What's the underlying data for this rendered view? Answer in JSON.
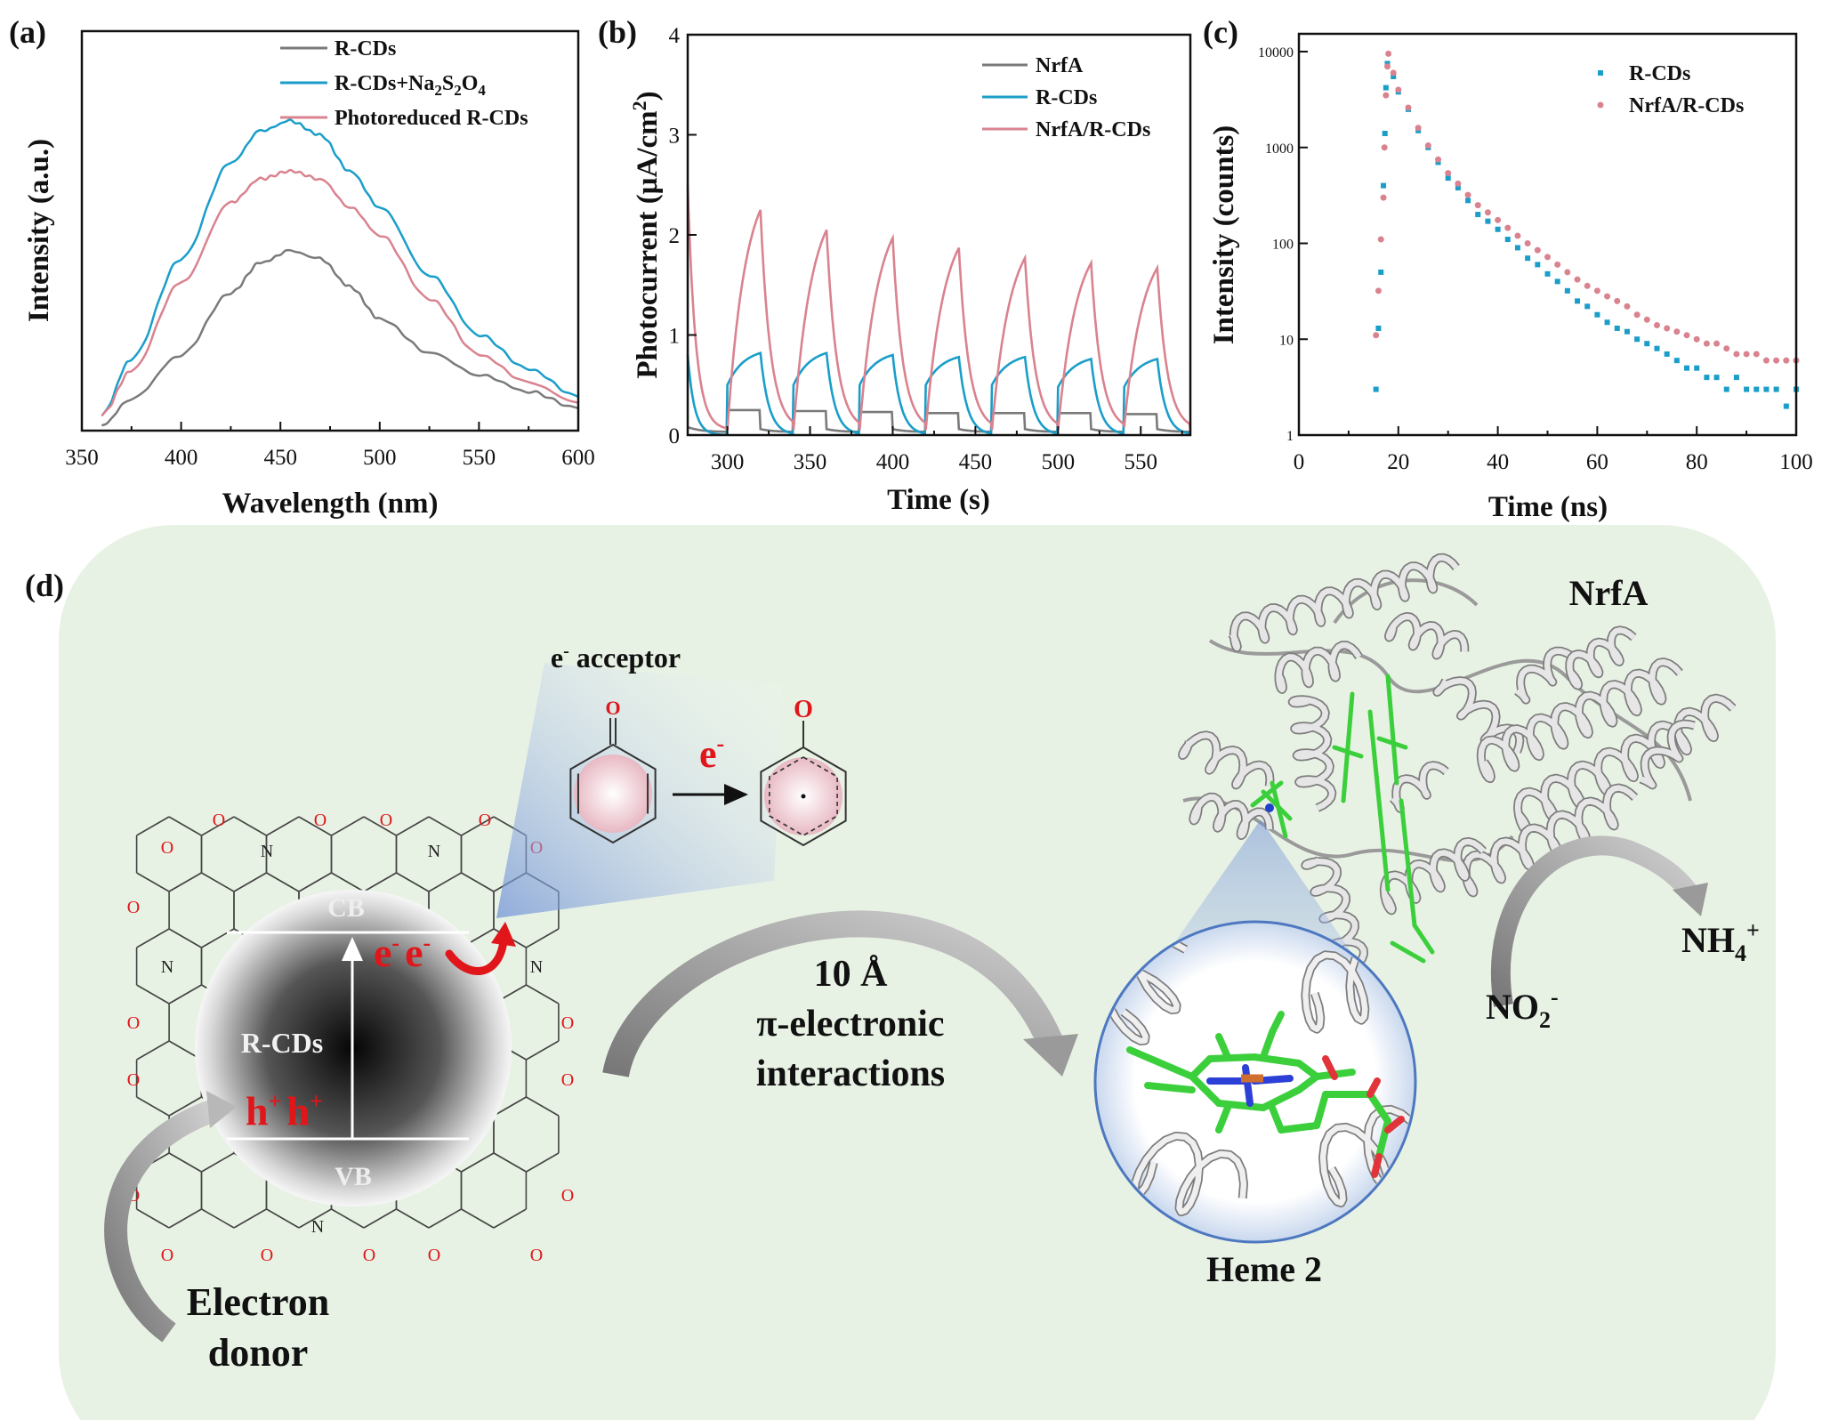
{
  "panel_labels": {
    "a": "(a)",
    "b": "(b)",
    "c": "(c)",
    "d": "(d)"
  },
  "chart_data": [
    {
      "type": "line",
      "panel": "a",
      "xlabel": "Wavelength (nm)",
      "ylabel": "Intensity (a.u.)",
      "xlim": [
        350,
        600
      ],
      "xticks": [
        "350",
        "400",
        "450",
        "500",
        "550",
        "600"
      ],
      "y_tick_labels_shown": false,
      "legend_position": "top-right",
      "x": [
        360,
        375,
        400,
        425,
        440,
        455,
        470,
        485,
        500,
        525,
        550,
        575,
        600
      ],
      "series": [
        {
          "name": "R-CDs",
          "color": "#7a7a7a",
          "values": [
            0.013,
            0.08,
            0.19,
            0.345,
            0.42,
            0.45,
            0.43,
            0.36,
            0.28,
            0.196,
            0.14,
            0.098,
            0.056
          ]
        },
        {
          "name": "R-CDs+Na2S2O4",
          "name_parts": [
            {
              "t": "R-CDs+Na"
            },
            {
              "sub": "2"
            },
            {
              "t": "S"
            },
            {
              "sub": "2"
            },
            {
              "t": "O"
            },
            {
              "sub": "4"
            }
          ],
          "color": "#1a9ec9",
          "values": [
            0.04,
            0.18,
            0.43,
            0.67,
            0.75,
            0.775,
            0.74,
            0.65,
            0.56,
            0.39,
            0.24,
            0.154,
            0.085
          ]
        },
        {
          "name": "Photoreduced R-CDs",
          "color": "#d9838f",
          "values": [
            0.04,
            0.15,
            0.37,
            0.57,
            0.63,
            0.65,
            0.63,
            0.56,
            0.49,
            0.33,
            0.19,
            0.12,
            0.07
          ]
        }
      ]
    },
    {
      "type": "line",
      "panel": "b",
      "xlabel": "Time (s)",
      "ylabel": "Photocurrent (μA/cm",
      "ylabel_sup": "2",
      "ylabel_end": ")",
      "xlim": [
        276,
        580
      ],
      "ylim": [
        0,
        4
      ],
      "xticks": [
        "300",
        "350",
        "400",
        "450",
        "500",
        "550"
      ],
      "yticks": [
        "0",
        "1",
        "2",
        "3",
        "4"
      ],
      "legend_position": "top-right",
      "light_on_times": [
        300,
        340,
        380,
        420,
        460,
        500,
        540
      ],
      "light_on_duration": 20,
      "series": [
        {
          "name": "NrfA",
          "color": "#7a7a7a",
          "initial": 0.08,
          "on_levels": [
            0.25,
            0.24,
            0.23,
            0.22,
            0.22,
            0.22,
            0.21
          ],
          "peaks": [
            0.25,
            0.24,
            0.23,
            0.22,
            0.22,
            0.22,
            0.21
          ]
        },
        {
          "name": "R-CDs",
          "color": "#1a9ec9",
          "initial": 0.8,
          "on_levels": [
            0.5,
            0.5,
            0.5,
            0.5,
            0.5,
            0.48,
            0.48
          ],
          "peaks": [
            0.82,
            0.82,
            0.8,
            0.78,
            0.78,
            0.76,
            0.76
          ]
        },
        {
          "name": "NrfA/R-CDs",
          "color": "#d9838f",
          "initial": 2.5,
          "on_levels": [
            0.05,
            0.05,
            0.05,
            0.05,
            0.05,
            0.05,
            0.08
          ],
          "peaks": [
            2.25,
            2.05,
            1.97,
            1.87,
            1.77,
            1.72,
            1.67
          ]
        }
      ]
    },
    {
      "type": "scatter",
      "panel": "c",
      "xlabel": "Time (ns)",
      "ylabel": "Intensity (counts)",
      "xlim": [
        0,
        100
      ],
      "ylim": [
        1,
        15000
      ],
      "yscale": "log",
      "xticks": [
        "0",
        "20",
        "40",
        "60",
        "80",
        "100"
      ],
      "yticks": [
        "1",
        "10",
        "100",
        "1000",
        "10000"
      ],
      "legend_position": "top-right",
      "series": [
        {
          "name": "R-CDs",
          "color": "#1a9ec9",
          "marker": "square",
          "x": [
            15.5,
            16,
            16.5,
            17,
            17.3,
            17.5,
            17.8,
            19,
            20,
            22,
            24,
            26,
            28,
            30,
            32,
            34,
            36,
            38,
            40,
            42,
            44,
            46,
            48,
            50,
            52,
            54,
            56,
            58,
            60,
            62,
            64,
            66,
            68,
            70,
            72,
            74,
            76,
            78,
            80,
            82,
            84,
            86,
            88,
            90,
            92,
            94,
            96,
            98,
            100
          ],
          "y": [
            3,
            13,
            50,
            400,
            1400,
            4200,
            7500,
            5500,
            3800,
            2500,
            1500,
            1000,
            700,
            480,
            380,
            280,
            200,
            170,
            140,
            110,
            90,
            70,
            60,
            48,
            40,
            32,
            25,
            22,
            18,
            15,
            13,
            12,
            10,
            9,
            8,
            7,
            6,
            5,
            5,
            4,
            4,
            3,
            4,
            3,
            3,
            3,
            3,
            2,
            3
          ]
        },
        {
          "name": "NrfA/R-CDs",
          "color": "#d9838f",
          "marker": "circle",
          "x": [
            15.5,
            16,
            16.5,
            17,
            17.2,
            17.5,
            17.8,
            18,
            19,
            20,
            22,
            24,
            26,
            28,
            30,
            32,
            34,
            36,
            38,
            40,
            42,
            44,
            46,
            48,
            50,
            52,
            54,
            56,
            58,
            60,
            62,
            64,
            66,
            68,
            70,
            72,
            74,
            76,
            78,
            80,
            82,
            84,
            86,
            88,
            90,
            92,
            94,
            96,
            98,
            100
          ],
          "y": [
            11,
            32,
            110,
            300,
            1000,
            3500,
            7000,
            9500,
            6000,
            4000,
            2600,
            1600,
            1050,
            750,
            540,
            420,
            320,
            250,
            210,
            175,
            145,
            120,
            100,
            85,
            72,
            60,
            50,
            42,
            36,
            32,
            28,
            25,
            22,
            18,
            16,
            14,
            13,
            12,
            11,
            10,
            9,
            9,
            8,
            7,
            7,
            7,
            6,
            6,
            6,
            6
          ]
        }
      ]
    }
  ],
  "diagram": {
    "electron_acceptor": {
      "e": "e",
      "sup": "-",
      "label": " acceptor"
    },
    "transfer_e": {
      "e": "e",
      "sup": "-"
    },
    "atom_labels": {
      "oxygen": "O",
      "nitrogen": "N"
    },
    "rcds": {
      "cb": "CB",
      "vb": "VB",
      "name": "R-CDs",
      "electrons": [
        {
          "e": "e",
          "sup": "-"
        },
        {
          "e": "e",
          "sup": "-"
        }
      ],
      "holes": [
        {
          "h": "h",
          "sup": "+"
        },
        {
          "h": "h",
          "sup": "+"
        }
      ]
    },
    "electron_donor": {
      "line1": "Electron",
      "line2": "donor"
    },
    "interaction": {
      "distance": "10 Å",
      "line2": "π-electronic",
      "line3": "interactions"
    },
    "heme_label": "Heme 2",
    "protein_label": "NrfA",
    "reactant": {
      "base": "NO",
      "sub": "2",
      "sup": "-"
    },
    "product": {
      "base": "NH",
      "sub": "4",
      "sup": "+"
    },
    "colors": {
      "background": "#e8f2e4",
      "red": "#e0161b",
      "arrow_gray": "#8a8a8a",
      "heme_green": "#3ccf3c"
    }
  }
}
